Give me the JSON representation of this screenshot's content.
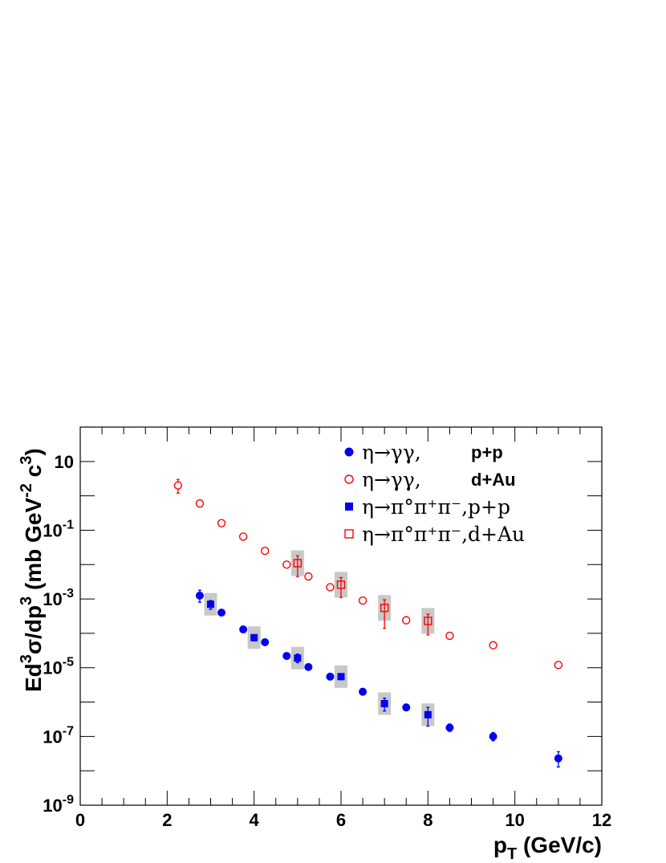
{
  "chart_data": {
    "type": "scatter",
    "title": "",
    "xlabel": "p_T (GeV/c)",
    "ylabel": "Ed^3σ/dp^3 (mb GeV^-2 c^3)",
    "xlim": [
      0,
      12
    ],
    "ylim": [
      1e-09,
      100
    ],
    "yscale": "log",
    "grid": false,
    "legend_position": "top-right",
    "x_ticks": [
      "0",
      "2",
      "4",
      "6",
      "8",
      "10",
      "12"
    ],
    "y_ticks": [
      {
        "value": 10,
        "base": "10",
        "exp": ""
      },
      {
        "value": 0.1,
        "base": "10",
        "exp": "-1"
      },
      {
        "value": 0.001,
        "base": "10",
        "exp": "-3"
      },
      {
        "value": 1e-05,
        "base": "10",
        "exp": "-5"
      },
      {
        "value": 1e-07,
        "base": "10",
        "exp": "-7"
      },
      {
        "value": 1e-09,
        "base": "10",
        "exp": "-9"
      }
    ],
    "series": [
      {
        "name": "η→γγ,  p+p",
        "marker": "filled-circle",
        "color": "#0000ee",
        "points": [
          {
            "x": 2.75,
            "y": 0.00125,
            "ylo": 0.0008,
            "yhi": 0.0018
          },
          {
            "x": 3.25,
            "y": 0.0004
          },
          {
            "x": 3.75,
            "y": 0.00013
          },
          {
            "x": 4.25,
            "y": 5.5e-05
          },
          {
            "x": 4.75,
            "y": 2.2e-05
          },
          {
            "x": 5.25,
            "y": 1.05e-05
          },
          {
            "x": 5.75,
            "y": 5.5e-06
          },
          {
            "x": 6.5,
            "y": 2e-06
          },
          {
            "x": 7.5,
            "y": 7e-07
          },
          {
            "x": 8.5,
            "y": 1.8e-07,
            "ylo": 1.4e-07,
            "yhi": 2.3e-07
          },
          {
            "x": 9.5,
            "y": 1e-07,
            "ylo": 7.5e-08,
            "yhi": 1.3e-07
          },
          {
            "x": 11.0,
            "y": 2.3e-08,
            "ylo": 1.3e-08,
            "yhi": 3.6e-08
          }
        ]
      },
      {
        "name": "η→γγ,  d+Au",
        "marker": "open-circle",
        "color": "#ff0000",
        "points": [
          {
            "x": 2.25,
            "y": 2.0,
            "ylo": 1.2,
            "yhi": 3.0
          },
          {
            "x": 2.75,
            "y": 0.6
          },
          {
            "x": 3.25,
            "y": 0.16
          },
          {
            "x": 3.75,
            "y": 0.065
          },
          {
            "x": 4.25,
            "y": 0.025
          },
          {
            "x": 4.75,
            "y": 0.01
          },
          {
            "x": 5.25,
            "y": 0.0045
          },
          {
            "x": 5.75,
            "y": 0.0022
          },
          {
            "x": 6.5,
            "y": 0.0009
          },
          {
            "x": 7.5,
            "y": 0.00024
          },
          {
            "x": 8.5,
            "y": 8.5e-05
          },
          {
            "x": 9.5,
            "y": 4.5e-05
          },
          {
            "x": 11.0,
            "y": 1.2e-05
          }
        ]
      },
      {
        "name": "η→π°π⁺π⁻, p+p",
        "marker": "filled-square",
        "color": "#0000ee",
        "points": [
          {
            "x": 3.0,
            "y": 0.0007,
            "ylo": 0.0005,
            "yhi": 0.0009
          },
          {
            "x": 4.0,
            "y": 7.5e-05,
            "ylo": 6e-05,
            "yhi": 9e-05
          },
          {
            "x": 5.0,
            "y": 1.9e-05,
            "ylo": 1.4e-05,
            "yhi": 2.5e-05
          },
          {
            "x": 6.0,
            "y": 5.5e-06,
            "ylo": 4.5e-06,
            "yhi": 6.7e-06
          },
          {
            "x": 7.0,
            "y": 9e-07,
            "ylo": 5.5e-07,
            "yhi": 1.3e-06
          },
          {
            "x": 8.0,
            "y": 4.3e-07,
            "ylo": 2e-07,
            "yhi": 7e-07
          }
        ]
      },
      {
        "name": "η→π°π⁺π⁻, d+Au",
        "marker": "open-square",
        "color": "#ff0000",
        "points": [
          {
            "x": 5.0,
            "y": 0.011,
            "ylo": 0.0045,
            "yhi": 0.018
          },
          {
            "x": 6.0,
            "y": 0.0026,
            "ylo": 0.0011,
            "yhi": 0.0042
          },
          {
            "x": 7.0,
            "y": 0.00055,
            "ylo": 0.00014,
            "yhi": 0.00095
          },
          {
            "x": 8.0,
            "y": 0.00023,
            "ylo": 9e-05,
            "yhi": 0.00036
          }
        ]
      }
    ]
  },
  "legend": {
    "entries": [
      {
        "reaction": "η→γγ,",
        "system": "p+p",
        "marker": "filled-circle",
        "color": "#0000ee"
      },
      {
        "reaction": "η→γγ,",
        "system": "d+Au",
        "marker": "open-circle",
        "color": "#ff0000"
      },
      {
        "reaction": "η→π°π⁺π⁻,p+p",
        "system": "",
        "marker": "filled-square",
        "color": "#0000ee"
      },
      {
        "reaction": "η→π°π⁺π⁻,d+Au",
        "system": "",
        "marker": "open-square",
        "color": "#ff0000"
      }
    ]
  },
  "axes": {
    "x_title_main": "p",
    "x_title_sub": "T",
    "x_title_rest": " (GeV/c)",
    "y_title_parts": [
      "Ed",
      "3",
      "σ/dp",
      "3",
      " (mb GeV",
      "-2",
      " c",
      "3",
      ")"
    ]
  },
  "colors": {
    "pp": "#0000ee",
    "dAu": "#ff0000",
    "systematic_box": "#c8c8c8"
  }
}
